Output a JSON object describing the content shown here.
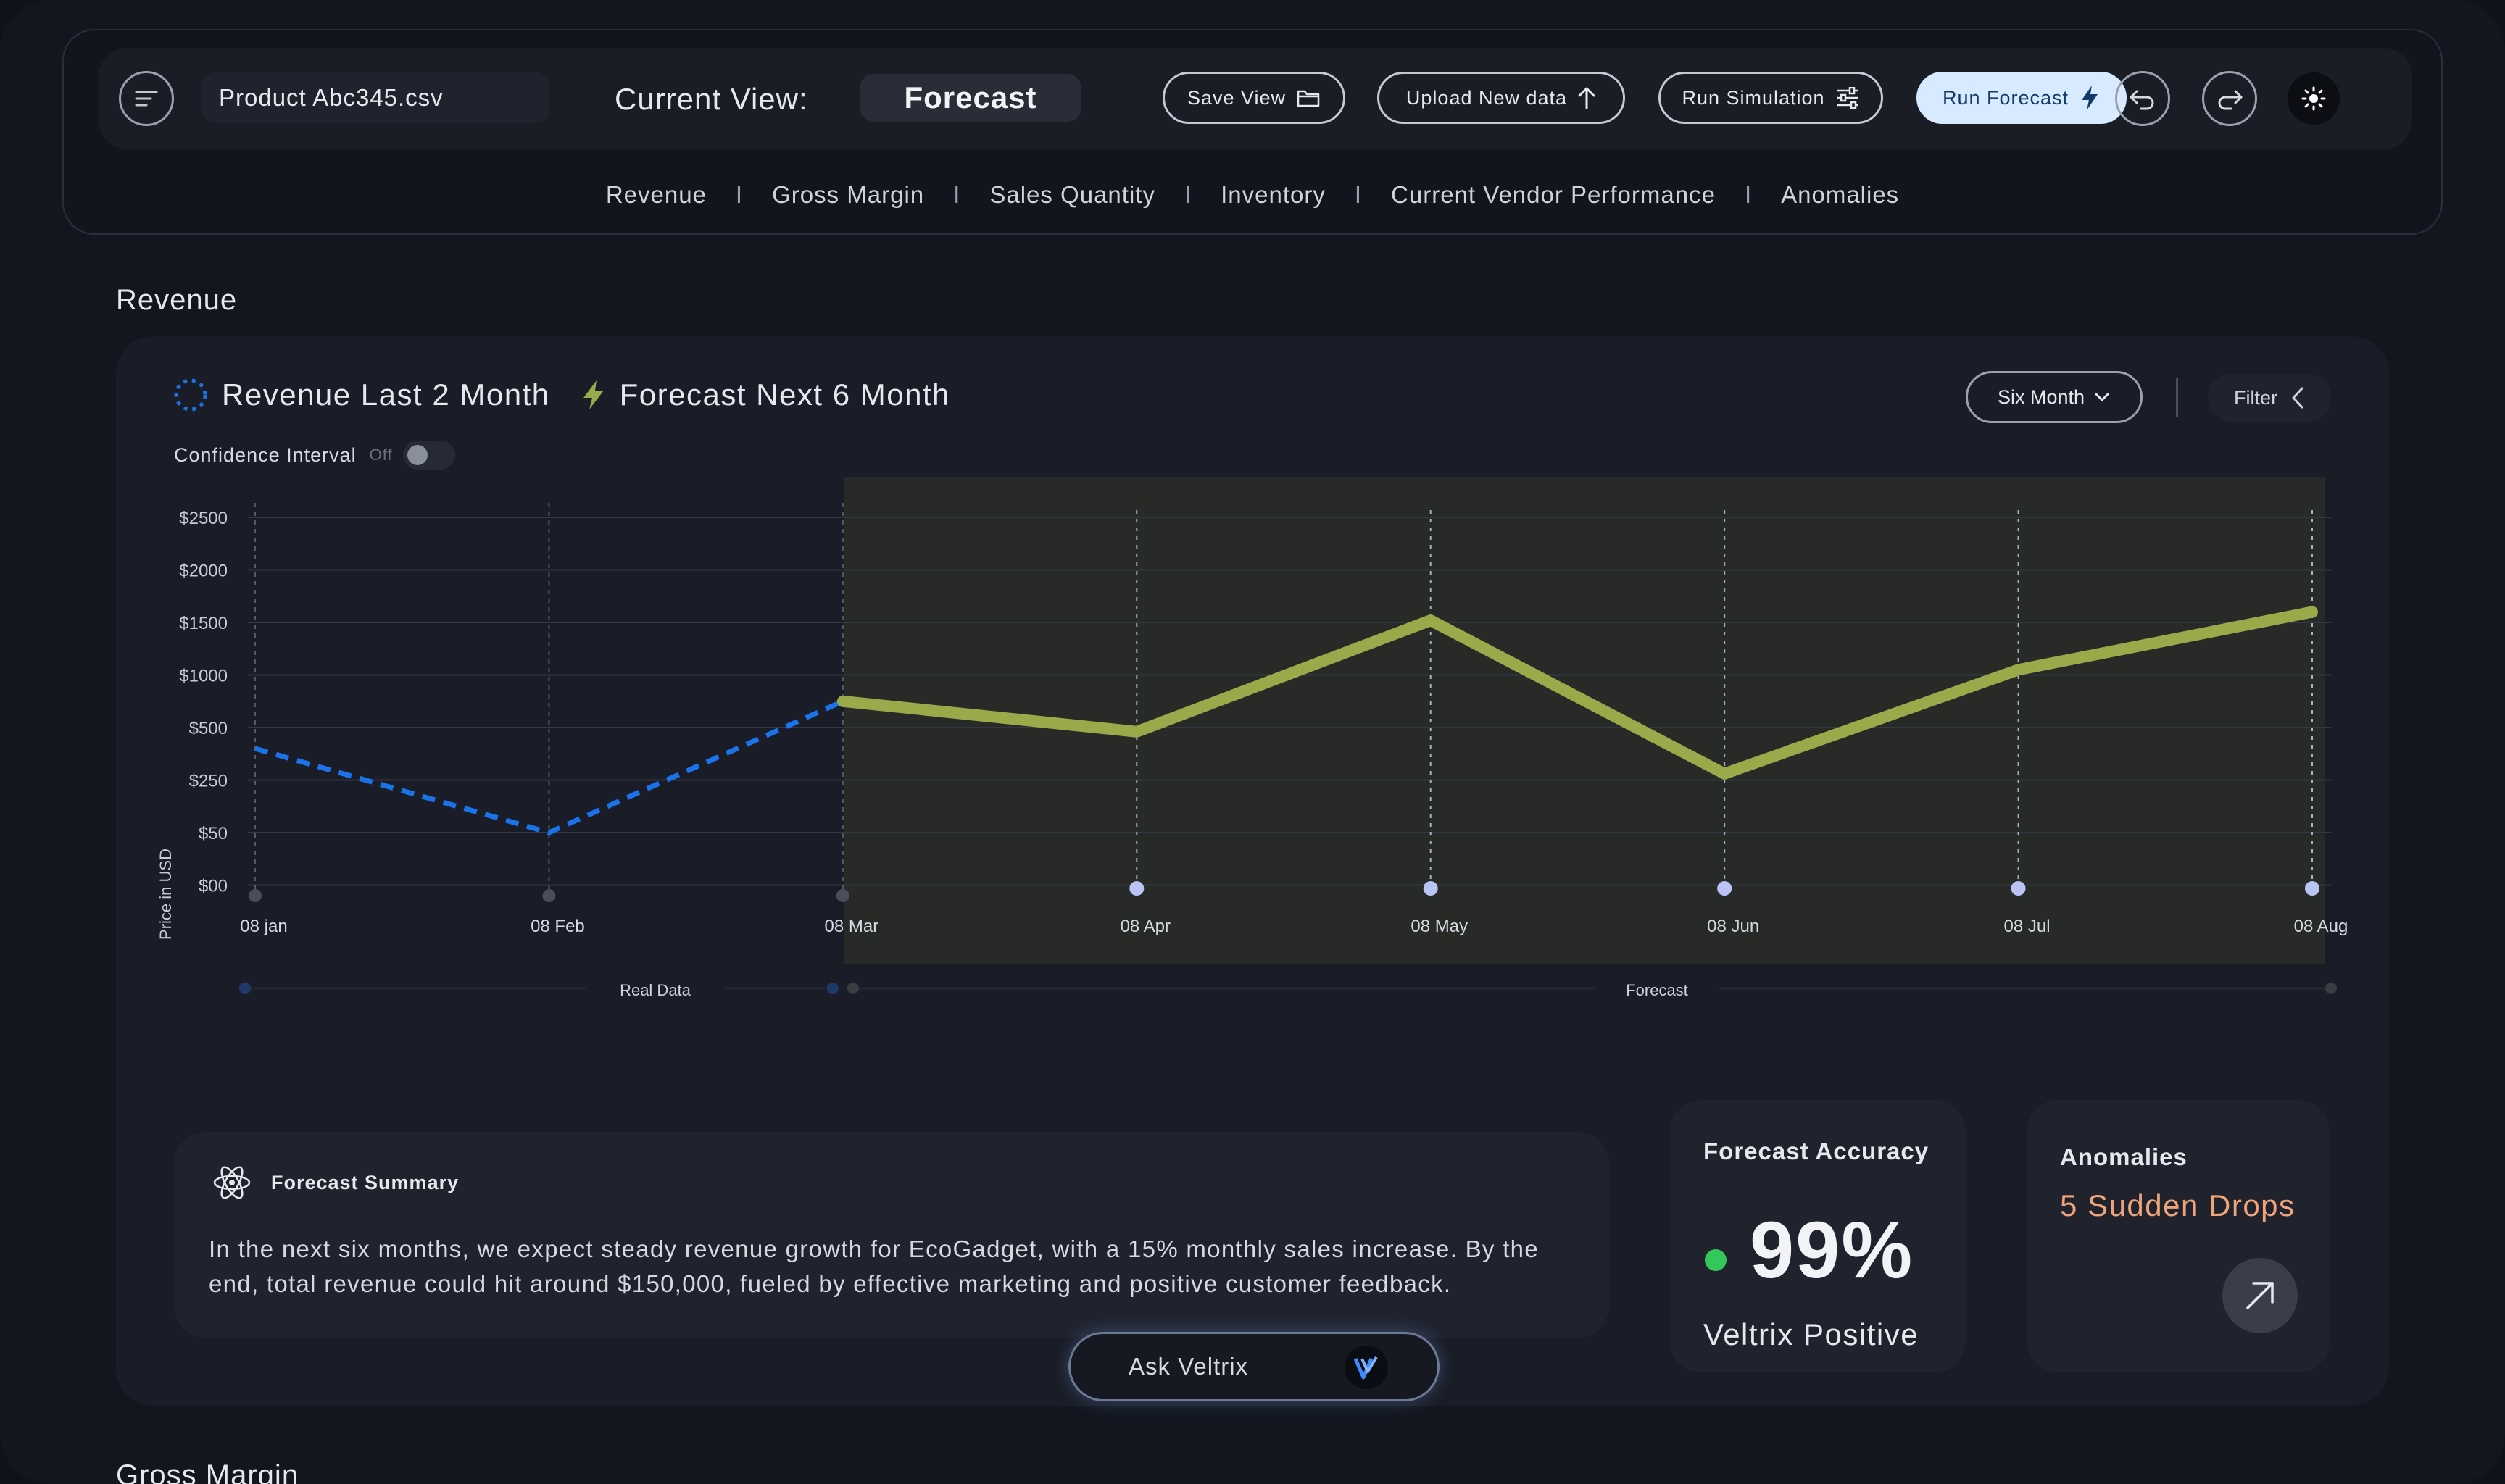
{
  "header": {
    "file_name": "Product Abc345.csv",
    "current_view_label": "Current View:",
    "current_view_value": "Forecast",
    "buttons": {
      "save_view": "Save View",
      "upload": "Upload New data",
      "simulation": "Run Simulation",
      "forecast": "Run Forecast"
    },
    "tabs": [
      "Revenue",
      "Gross Margin",
      "Sales Quantity",
      "Inventory",
      "Current Vendor Performance",
      "Anomalies"
    ]
  },
  "sections": {
    "revenue_title": "Revenue",
    "gross_margin_title": "Gross Margin"
  },
  "revenue_card": {
    "legend_real": "Revenue Last 2 Month",
    "legend_forecast": "Forecast Next 6 Month",
    "confidence_label": "Confidence Interval",
    "confidence_state": "Off",
    "period_select": "Six Month",
    "filter_label": "Filter"
  },
  "chart_data": {
    "type": "line",
    "ylabel": "Price in USD",
    "y_ticks": [
      "$2500",
      "$2000",
      "$1500",
      "$1000",
      "$500",
      "$250",
      "$50",
      "$00"
    ],
    "x_labels": [
      "08 jan",
      "08 Feb",
      "08 Mar",
      "08 Apr",
      "08 May",
      "08 Jun",
      "08 Jul",
      "08 Aug"
    ],
    "series": [
      {
        "name": "Revenue Last 2 Month",
        "style": "dashed",
        "color": "#1a73e8",
        "points": [
          {
            "x": "08 jan",
            "y": 400
          },
          {
            "x": "08 Feb",
            "y": 50
          },
          {
            "x": "08 Mar",
            "y": 750
          }
        ]
      },
      {
        "name": "Forecast Next 6 Month",
        "style": "solid",
        "color": "#9aaa4a",
        "points": [
          {
            "x": "08 Mar",
            "y": 750
          },
          {
            "x": "08 Apr",
            "y": 480
          },
          {
            "x": "08 May",
            "y": 1520
          },
          {
            "x": "08 Jun",
            "y": 280
          },
          {
            "x": "08 Jul",
            "y": 1050
          },
          {
            "x": "08 Aug",
            "y": 1600
          }
        ]
      }
    ],
    "range_labels": {
      "real": "Real Data",
      "forecast": "Forecast"
    }
  },
  "summary": {
    "title": "Forecast Summary",
    "text": "In the next six months, we expect steady revenue growth for EcoGadget, with a 15% monthly sales increase. By the end, total revenue could hit around $150,000, fueled by effective marketing and positive customer feedback."
  },
  "ask_button": "Ask Veltrix",
  "accuracy": {
    "title": "Forecast Accuracy",
    "value": "99%",
    "status": "Veltrix Positive"
  },
  "anomalies": {
    "title": "Anomalies",
    "value": "5 Sudden Drops"
  }
}
